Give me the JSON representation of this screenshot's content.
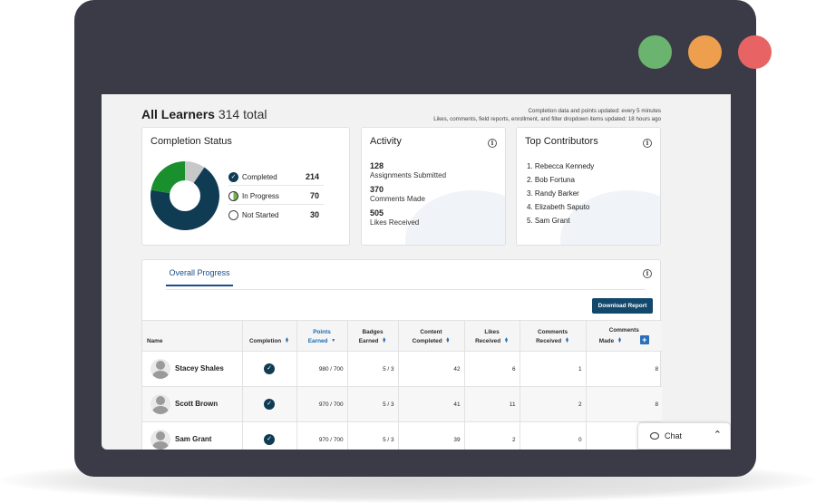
{
  "colors": {
    "frame": "#3b3b47",
    "completed": "#0f3b53",
    "in_progress": "#1a8f2e",
    "not_started": "#c8c8c8",
    "accent": "#1a4e8a"
  },
  "header": {
    "title": "All Learners",
    "count": "314 total",
    "update_line_1": "Completion data and points updated: every 5 minutes",
    "update_line_2": "Likes, comments, field reports, enrollment, and filter dropdown items updated: 18 hours ago"
  },
  "completion_status": {
    "title": "Completion Status",
    "items": [
      {
        "label": "Completed",
        "value": "214",
        "count": 214
      },
      {
        "label": "In Progress",
        "value": "70",
        "count": 70
      },
      {
        "label": "Not Started",
        "value": "30",
        "count": 30
      }
    ]
  },
  "activity": {
    "title": "Activity",
    "items": [
      {
        "value": "128",
        "label": "Assignments Submitted"
      },
      {
        "value": "370",
        "label": "Comments Made"
      },
      {
        "value": "505",
        "label": "Likes Received"
      }
    ]
  },
  "top_contributors": {
    "title": "Top Contributors",
    "items": [
      "1.  Rebecca Kennedy",
      "2.  Bob Fortuna",
      "3.  Randy Barker",
      "4.  Elizabeth Saputo",
      "5.  Sam Grant"
    ]
  },
  "overall_progress": {
    "tab": "Overall Progress",
    "download": "Download Report",
    "columns": [
      {
        "line1": "",
        "line2": "Name"
      },
      {
        "line1": "",
        "line2": "Completion"
      },
      {
        "line1": "Points",
        "line2": "Earned"
      },
      {
        "line1": "Badges",
        "line2": "Earned"
      },
      {
        "line1": "Content",
        "line2": "Completed"
      },
      {
        "line1": "Likes",
        "line2": "Received"
      },
      {
        "line1": "Comments",
        "line2": "Received"
      },
      {
        "line1": "Comments",
        "line2": "Made"
      }
    ],
    "add_column": "+",
    "rows": [
      {
        "name": "Stacey Shales",
        "points": "980 / 700",
        "badges": "5 / 3",
        "content": "42",
        "likes": "6",
        "comments_received": "1",
        "comments_made": "8"
      },
      {
        "name": "Scott Brown",
        "points": "970 / 700",
        "badges": "5 / 3",
        "content": "41",
        "likes": "11",
        "comments_received": "2",
        "comments_made": "8"
      },
      {
        "name": "Sam Grant",
        "points": "970 / 700",
        "badges": "5 / 3",
        "content": "39",
        "likes": "2",
        "comments_received": "0",
        "comments_made": "8"
      }
    ]
  },
  "chat": {
    "label": "Chat"
  },
  "icons": {
    "info": "info-icon",
    "check": "check-icon",
    "chat": "chat-bubble-icon",
    "chevron": "chevron-up-icon"
  }
}
